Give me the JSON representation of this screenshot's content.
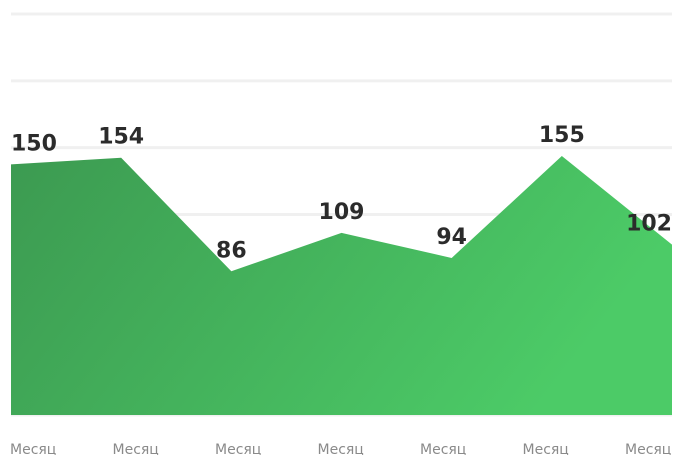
{
  "chart_data": {
    "type": "area",
    "categories": [
      "Месяц",
      "Месяц",
      "Месяц",
      "Месяц",
      "Месяц",
      "Месяц",
      "Месяц"
    ],
    "values": [
      150,
      154,
      86,
      109,
      94,
      155,
      102
    ],
    "color": "#45b25c",
    "ylim": [
      0,
      240
    ],
    "yticks": [
      0,
      40,
      80,
      120,
      160,
      200,
      240
    ],
    "grid": true
  }
}
